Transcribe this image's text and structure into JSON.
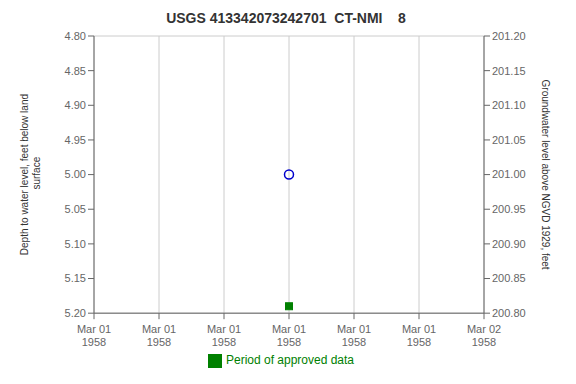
{
  "chart_data": {
    "type": "scatter",
    "title": "USGS 413342073242701  CT-NMI    8",
    "y_label": "Depth to water level, feet below land\n surface",
    "y2_label": "Groundwater level above NGVD 1929, feet",
    "categories": [
      "Mar 01\n1958",
      "Mar 01\n1958",
      "Mar 01\n1958",
      "Mar 01\n1958",
      "Mar 01\n1958",
      "Mar 01\n1958",
      "Mar 02\n1958"
    ],
    "series": [
      {
        "color": "#0000cc",
        "marker": "circle",
        "line_style": "none",
        "values": [
          null,
          null,
          null,
          5.0,
          null,
          null,
          null
        ]
      },
      {
        "name": "Period of approved data",
        "color": "#008000",
        "marker": "square",
        "line_style": "none",
        "values": [
          null,
          null,
          null,
          5.19,
          null,
          null,
          null
        ]
      }
    ],
    "ylim": [
      5.2,
      4.8
    ],
    "yticks": [
      {
        "value": 4.8,
        "label": "4.80"
      },
      4.85,
      {
        "value": 4.9,
        "label": "4.90"
      },
      4.95,
      {
        "value": 5.0,
        "label": "5.00"
      },
      5.05,
      {
        "value": 5.1,
        "label": "5.10"
      },
      5.15,
      {
        "value": 5.2,
        "label": "5.20"
      }
    ],
    "y2lim": [
      200.8,
      201.2
    ],
    "y2ticks": [
      {
        "value": 200.8,
        "label": "200.80"
      },
      200.85,
      {
        "value": 200.9,
        "label": "200.90"
      },
      200.95,
      {
        "value": 201.0,
        "label": "201.00"
      },
      201.05,
      {
        "value": 201.1,
        "label": "201.10"
      },
      201.15,
      {
        "value": 201.2,
        "label": "201.20"
      }
    ],
    "grid": true,
    "legend": "bottom"
  }
}
